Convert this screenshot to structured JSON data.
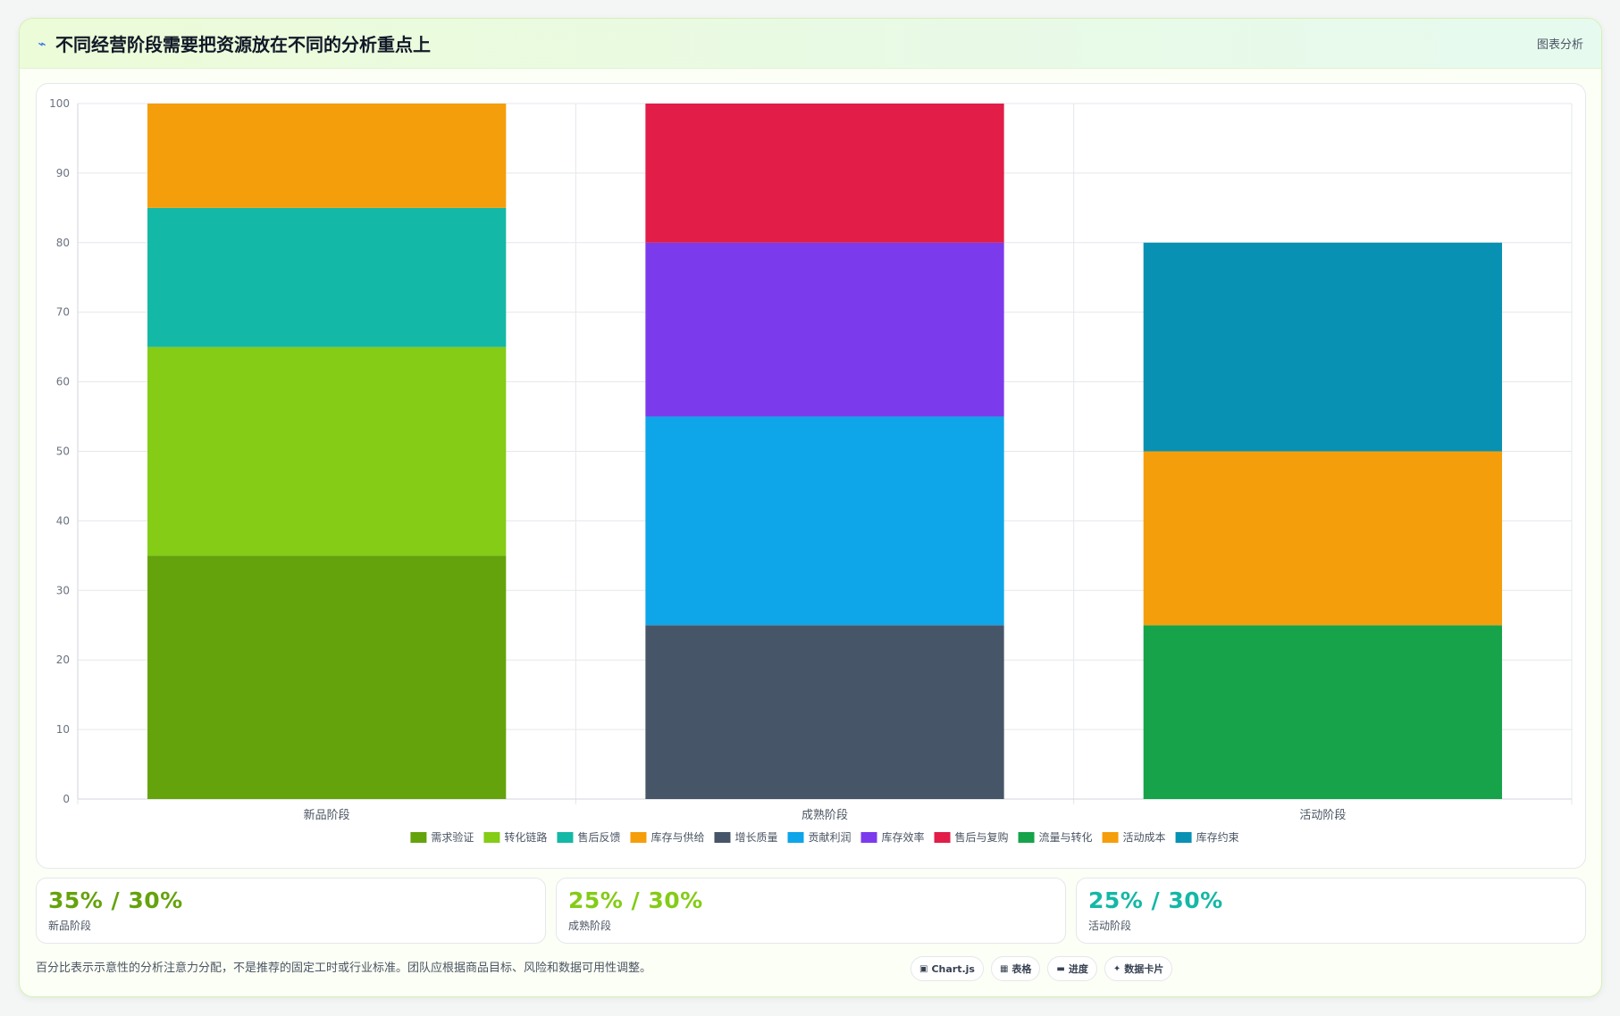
{
  "header": {
    "title": "不同经营阶段需要把资源放在不同的分析重点上",
    "tag": "图表分析",
    "icon": "pulse-icon"
  },
  "chart_data": {
    "type": "bar",
    "stacked": true,
    "categories": [
      "新品阶段",
      "成熟阶段",
      "活动阶段"
    ],
    "ylim": [
      0,
      100
    ],
    "yticks": [
      0,
      10,
      20,
      30,
      40,
      50,
      60,
      70,
      80,
      90,
      100
    ],
    "grid": true,
    "legend_position": "bottom",
    "series": [
      {
        "name": "需求验证",
        "color": "#65a30d",
        "values": [
          35,
          0,
          0
        ]
      },
      {
        "name": "转化链路",
        "color": "#84cc16",
        "values": [
          30,
          0,
          0
        ]
      },
      {
        "name": "售后反馈",
        "color": "#14b8a6",
        "values": [
          20,
          0,
          0
        ]
      },
      {
        "name": "库存与供给",
        "color": "#f59e0b",
        "values": [
          15,
          0,
          0
        ]
      },
      {
        "name": "增长质量",
        "color": "#475569",
        "values": [
          0,
          25,
          0
        ]
      },
      {
        "name": "贡献利润",
        "color": "#0ea5e9",
        "values": [
          0,
          30,
          0
        ]
      },
      {
        "name": "库存效率",
        "color": "#7c3aed",
        "values": [
          0,
          25,
          0
        ]
      },
      {
        "name": "售后与复购",
        "color": "#e11d48",
        "values": [
          0,
          20,
          0
        ]
      },
      {
        "name": "流量与转化",
        "color": "#16a34a",
        "values": [
          0,
          0,
          25
        ]
      },
      {
        "name": "活动成本",
        "color": "#f59e0b",
        "values": [
          0,
          0,
          25
        ]
      },
      {
        "name": "库存约束",
        "color": "#0891b2",
        "values": [
          0,
          0,
          30
        ]
      }
    ]
  },
  "stats": [
    {
      "value": "35% / 30%",
      "label": "新品阶段",
      "color": "#65a30d"
    },
    {
      "value": "25% / 30%",
      "label": "成熟阶段",
      "color": "#84cc16"
    },
    {
      "value": "25% / 30%",
      "label": "活动阶段",
      "color": "#14b8a6"
    }
  ],
  "footer": {
    "note": "百分比表示示意性的分析注意力分配，不是推荐的固定工时或行业标准。团队应根据商品目标、风险和数据可用性调整。",
    "buttons": [
      {
        "label": "Chart.js",
        "icon": "▣",
        "icon_name": "chart-icon"
      },
      {
        "label": "表格",
        "icon": "▦",
        "icon_name": "table-icon"
      },
      {
        "label": "进度",
        "icon": "▬",
        "icon_name": "progress-icon"
      },
      {
        "label": "数据卡片",
        "icon": "✦",
        "icon_name": "sparkle-icon"
      }
    ]
  }
}
